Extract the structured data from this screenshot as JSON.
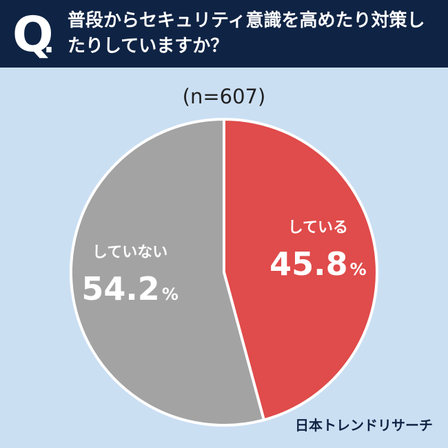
{
  "question": {
    "mark": "Q",
    "dot": ".",
    "text": "普段からセキュリティ意識を高めたり対策したりしていますか？"
  },
  "sample_size": "(n=607)",
  "brand": "日本トレンドリサーチ",
  "colors": {
    "header_bg": "#0f2344",
    "page_bg": "#cbdff3",
    "yes": "#e04b4b",
    "no": "#a3a3a3",
    "slice_border": "#ffffff"
  },
  "chart_data": {
    "type": "pie",
    "title": "普段からセキュリティ意識を高めたり対策したりしていますか？",
    "n_label": "(n=607)",
    "start": "12 o'clock, clockwise",
    "slices": [
      {
        "label": "している",
        "value": 45.8,
        "value_text": "45.8",
        "unit": "%",
        "color": "#e04b4b"
      },
      {
        "label": "していない",
        "value": 54.2,
        "value_text": "54.2",
        "unit": "%",
        "color": "#a3a3a3"
      }
    ]
  }
}
